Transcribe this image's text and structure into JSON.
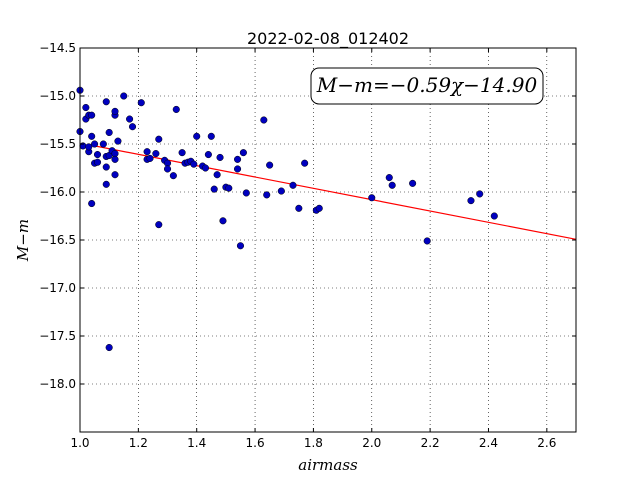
{
  "chart_data": {
    "type": "scatter",
    "title": "2022-02-08_012402",
    "xlabel": "airmass",
    "ylabel": "M−m",
    "xlim": [
      1.0,
      2.7
    ],
    "ylim": [
      -14.5,
      -18.5
    ],
    "y_inverted": true,
    "grid": true,
    "xticks": [
      "1.0",
      "1.2",
      "1.4",
      "1.6",
      "1.8",
      "2.0",
      "2.2",
      "2.4",
      "2.6"
    ],
    "yticks": [
      "−14.5",
      "−15.0",
      "−15.5",
      "−16.0",
      "−16.5",
      "−17.0",
      "−17.5",
      "−18.0"
    ],
    "annotation": "M−m=−0.59χ−14.90",
    "fit_line": {
      "slope": -0.59,
      "intercept": -14.9,
      "x_range": [
        1.05,
        2.7
      ],
      "color": "#ff0000"
    },
    "point_color": "#0000bf",
    "points": [
      [
        1.0,
        -14.94
      ],
      [
        1.0,
        -15.37
      ],
      [
        1.01,
        -15.52
      ],
      [
        1.02,
        -15.12
      ],
      [
        1.02,
        -15.24
      ],
      [
        1.03,
        -15.2
      ],
      [
        1.03,
        -15.58
      ],
      [
        1.03,
        -15.53
      ],
      [
        1.04,
        -15.2
      ],
      [
        1.04,
        -15.42
      ],
      [
        1.04,
        -16.12
      ],
      [
        1.05,
        -15.7
      ],
      [
        1.05,
        -15.5
      ],
      [
        1.06,
        -15.61
      ],
      [
        1.06,
        -15.69
      ],
      [
        1.08,
        -15.5
      ],
      [
        1.09,
        -15.06
      ],
      [
        1.09,
        -15.63
      ],
      [
        1.09,
        -15.74
      ],
      [
        1.09,
        -15.92
      ],
      [
        1.1,
        -15.38
      ],
      [
        1.1,
        -15.62
      ],
      [
        1.1,
        -17.62
      ],
      [
        1.11,
        -15.57
      ],
      [
        1.12,
        -15.6
      ],
      [
        1.12,
        -15.2
      ],
      [
        1.12,
        -15.16
      ],
      [
        1.12,
        -15.66
      ],
      [
        1.12,
        -15.82
      ],
      [
        1.13,
        -15.47
      ],
      [
        1.15,
        -15.0
      ],
      [
        1.17,
        -15.24
      ],
      [
        1.18,
        -15.32
      ],
      [
        1.21,
        -15.07
      ],
      [
        1.23,
        -15.58
      ],
      [
        1.23,
        -15.66
      ],
      [
        1.24,
        -15.65
      ],
      [
        1.26,
        -15.6
      ],
      [
        1.27,
        -15.45
      ],
      [
        1.27,
        -16.34
      ],
      [
        1.29,
        -15.67
      ],
      [
        1.3,
        -15.7
      ],
      [
        1.3,
        -15.76
      ],
      [
        1.32,
        -15.83
      ],
      [
        1.33,
        -15.14
      ],
      [
        1.35,
        -15.59
      ],
      [
        1.36,
        -15.7
      ],
      [
        1.37,
        -15.69
      ],
      [
        1.38,
        -15.68
      ],
      [
        1.39,
        -15.71
      ],
      [
        1.4,
        -15.42
      ],
      [
        1.42,
        -15.73
      ],
      [
        1.43,
        -15.75
      ],
      [
        1.44,
        -15.61
      ],
      [
        1.45,
        -15.42
      ],
      [
        1.46,
        -15.97
      ],
      [
        1.47,
        -15.82
      ],
      [
        1.48,
        -15.64
      ],
      [
        1.49,
        -16.3
      ],
      [
        1.5,
        -15.95
      ],
      [
        1.51,
        -15.96
      ],
      [
        1.54,
        -15.66
      ],
      [
        1.54,
        -15.76
      ],
      [
        1.55,
        -16.56
      ],
      [
        1.56,
        -15.59
      ],
      [
        1.57,
        -16.01
      ],
      [
        1.63,
        -15.25
      ],
      [
        1.64,
        -16.03
      ],
      [
        1.65,
        -15.72
      ],
      [
        1.69,
        -15.99
      ],
      [
        1.73,
        -15.93
      ],
      [
        1.75,
        -16.17
      ],
      [
        1.77,
        -15.7
      ],
      [
        1.81,
        -16.19
      ],
      [
        1.82,
        -16.17
      ],
      [
        2.0,
        -16.06
      ],
      [
        2.06,
        -15.85
      ],
      [
        2.07,
        -15.93
      ],
      [
        2.14,
        -15.91
      ],
      [
        2.19,
        -16.51
      ],
      [
        2.34,
        -16.09
      ],
      [
        2.37,
        -16.02
      ],
      [
        2.42,
        -16.25
      ]
    ]
  }
}
